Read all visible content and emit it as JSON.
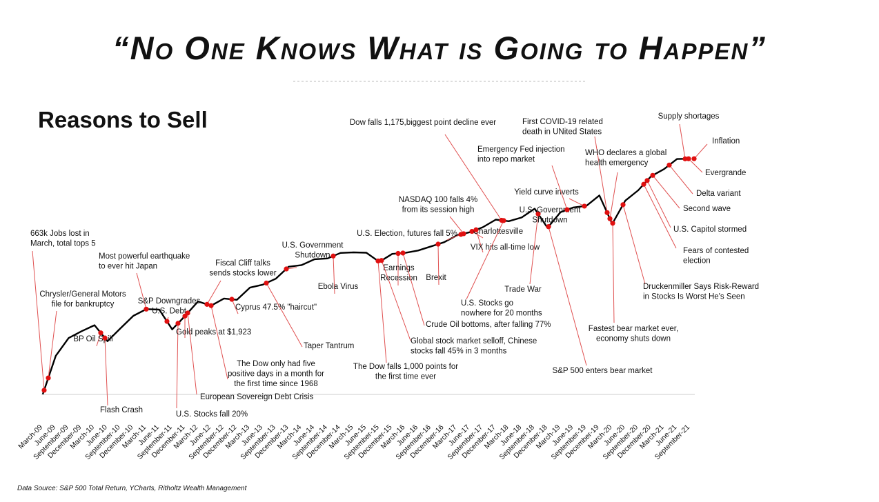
{
  "header": {
    "title": "“No One Knows What is Going to Happen”"
  },
  "chart_data": {
    "type": "line",
    "title": "Reasons to Sell",
    "source": "Data Source: S&P 500 Total Return, YCharts, Ritholtz Wealth Management",
    "log_scale": true,
    "ylim": [
      600,
      5500
    ],
    "categories": [
      "March-09",
      "June-09",
      "September-09",
      "December-09",
      "March-10",
      "June-10",
      "September-10",
      "December-10",
      "March-11",
      "June-11",
      "September-11",
      "December-11",
      "March-12",
      "June-12",
      "September-12",
      "December-12",
      "March-13",
      "June-13",
      "September-13",
      "December-13",
      "March-14",
      "June-14",
      "September-14",
      "December-14",
      "March-15",
      "June-15",
      "September-15",
      "December-15",
      "March-16",
      "June-16",
      "September-16",
      "December-16",
      "March-17",
      "June-17",
      "September-17",
      "December-17",
      "March-18",
      "June-18",
      "September-18",
      "December-18",
      "March-19",
      "June-19",
      "September-19",
      "December-19",
      "March-20",
      "June-20",
      "September-20",
      "December-20",
      "March-21",
      "June-21",
      "September-21"
    ],
    "series": [
      {
        "name": "S&P 500",
        "color": "#000000",
        "values": [
          680,
          919,
          1057,
          1115,
          1169,
          1031,
          1141,
          1258,
          1326,
          1321,
          1131,
          1258,
          1408,
          1362,
          1441,
          1426,
          1569,
          1606,
          1682,
          1848,
          1872,
          1960,
          1972,
          2059,
          2068,
          2063,
          1920,
          2044,
          2060,
          2099,
          2168,
          2239,
          2363,
          2423,
          2519,
          2674,
          2641,
          2718,
          2914,
          2507,
          2834,
          2942,
          2977,
          3231,
          2585,
          3100,
          3363,
          3756,
          3973,
          4298,
          4308
        ]
      }
    ],
    "annotations": [
      {
        "lines": [
          "663k Jobs lost in",
          "March, total tops 5"
        ]
      },
      {
        "lines": [
          "Chrysler/General Motors",
          "file for bankruptcy"
        ]
      },
      {
        "lines": [
          "BP Oil Spill"
        ]
      },
      {
        "lines": [
          "Flash Crash"
        ]
      },
      {
        "lines": [
          "Most powerful earthquake",
          "to ever hit Japan"
        ]
      },
      {
        "lines": [
          "S&P Downgrades",
          "U.S. Debt"
        ]
      },
      {
        "lines": [
          "U.S. Stocks fall 20%"
        ]
      },
      {
        "lines": [
          "Gold peaks at $1,923"
        ]
      },
      {
        "lines": [
          "European Sovereign Debt Crisis"
        ]
      },
      {
        "lines": [
          "Fiscal Cliff talks",
          "sends stocks lower"
        ]
      },
      {
        "lines": [
          "The Dow only had five",
          "positive days in a month for",
          "the first time since 1968"
        ]
      },
      {
        "lines": [
          "Cyprus 47.5% \"haircut\""
        ]
      },
      {
        "lines": [
          "U.S. Government",
          "Shutdown"
        ]
      },
      {
        "lines": [
          "Taper Tantrum"
        ]
      },
      {
        "lines": [
          "Ebola Virus"
        ]
      },
      {
        "lines": [
          "Earnings",
          "Recession"
        ]
      },
      {
        "lines": [
          "The Dow falls 1,000 points for",
          "the first time ever"
        ]
      },
      {
        "lines": [
          "Global stock market selloff, Chinese",
          "stocks fall 45% in 3 months"
        ]
      },
      {
        "lines": [
          "Brexit"
        ]
      },
      {
        "lines": [
          "Crude Oil bottoms, after falling 77%"
        ]
      },
      {
        "lines": [
          "U.S. Election, futures fall 5%"
        ]
      },
      {
        "lines": [
          "NASDAQ 100 falls 4%",
          "from its  session high"
        ]
      },
      {
        "lines": [
          "Charlottesville"
        ]
      },
      {
        "lines": [
          "VIX hits all-time low"
        ]
      },
      {
        "lines": [
          "U.S. Stocks go",
          "nowhere for 20 months"
        ]
      },
      {
        "lines": [
          "Dow falls 1,175,biggest point decline ever"
        ]
      },
      {
        "lines": [
          "Trade War"
        ]
      },
      {
        "lines": [
          "U.S. Government",
          "Shutdown"
        ]
      },
      {
        "lines": [
          "S&P 500 enters bear market"
        ]
      },
      {
        "lines": [
          "Yield curve inverts"
        ]
      },
      {
        "lines": [
          "Emergency Fed injection",
          "into repo market"
        ]
      },
      {
        "lines": [
          "First COVID-19 related",
          "death in UNited States"
        ]
      },
      {
        "lines": [
          "WHO declares a global",
          "health emergency"
        ]
      },
      {
        "lines": [
          "Fastest bear market ever,",
          "economy shuts down"
        ]
      },
      {
        "lines": [
          "Druckenmiller Says Risk-Reward",
          "in Stocks Is Worst He's Seen"
        ]
      },
      {
        "lines": [
          "Fears of contested",
          "election"
        ]
      },
      {
        "lines": [
          "U.S. Capitol stormed"
        ]
      },
      {
        "lines": [
          "Second wave"
        ]
      },
      {
        "lines": [
          "Delta variant"
        ]
      },
      {
        "lines": [
          "Evergrande"
        ]
      },
      {
        "lines": [
          "Inflation"
        ]
      },
      {
        "lines": [
          "Supply shortages"
        ]
      }
    ]
  }
}
